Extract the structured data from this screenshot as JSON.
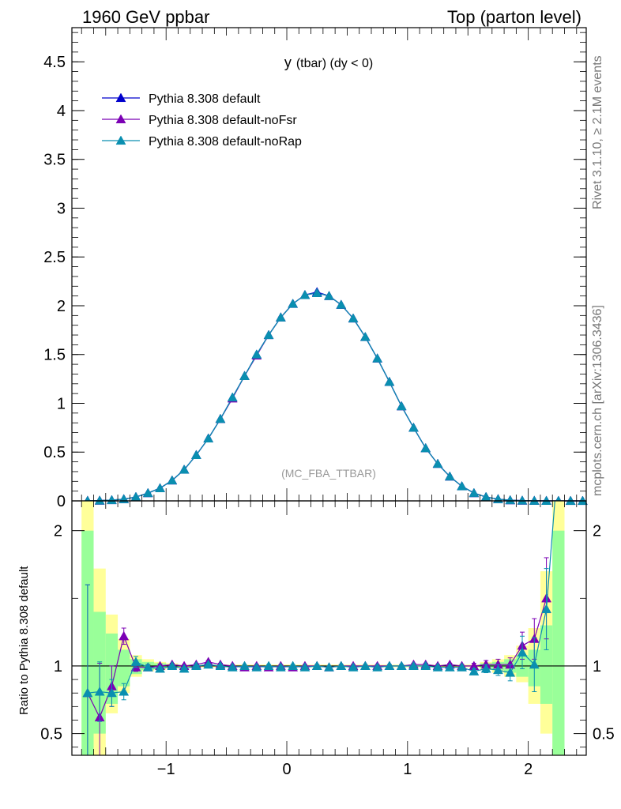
{
  "header": {
    "left": "1960 GeV ppbar",
    "right": "Top (parton level)"
  },
  "side_labels": {
    "rivet": "Rivet 3.1.10, ≥ 2.1M events",
    "mcplots": "mcplots.cern.ch [arXiv:1306.3436]"
  },
  "watermark": "(MC_FBA_TTBAR)",
  "colors": {
    "default": "#0000cc",
    "noFsr": "#7b00b4",
    "noRap": "#0a8fb0",
    "band_inner": "#99ff99",
    "band_outer": "#ffff99"
  },
  "chart_data": [
    {
      "type": "line",
      "title_main": "y",
      "title_sub": "(tbar) (dy < 0)",
      "xlim": [
        -1.78,
        2.48
      ],
      "ylim": [
        0,
        4.85
      ],
      "yticks": [
        {
          "v": 0,
          "label": "0"
        },
        {
          "v": 0.5,
          "label": "0.5"
        },
        {
          "v": 1,
          "label": "1"
        },
        {
          "v": 1.5,
          "label": "1.5"
        },
        {
          "v": 2,
          "label": "2"
        },
        {
          "v": 2.5,
          "label": "2.5"
        },
        {
          "v": 3,
          "label": "3"
        },
        {
          "v": 3.5,
          "label": "3.5"
        },
        {
          "v": 4,
          "label": "4"
        },
        {
          "v": 4.5,
          "label": "4.5"
        }
      ],
      "legend_position": "top-left",
      "x": [
        -1.65,
        -1.55,
        -1.45,
        -1.35,
        -1.25,
        -1.15,
        -1.05,
        -0.95,
        -0.85,
        -0.75,
        -0.65,
        -0.55,
        -0.45,
        -0.35,
        -0.25,
        -0.15,
        -0.05,
        0.05,
        0.15,
        0.25,
        0.35,
        0.45,
        0.55,
        0.65,
        0.75,
        0.85,
        0.95,
        1.05,
        1.15,
        1.25,
        1.35,
        1.45,
        1.55,
        1.65,
        1.75,
        1.85,
        1.95,
        2.05,
        2.15,
        2.25,
        2.35,
        2.45
      ],
      "series": [
        {
          "name": "Pythia 8.308 default",
          "color_key": "default",
          "values": [
            0.001,
            0.003,
            0.008,
            0.018,
            0.04,
            0.08,
            0.13,
            0.21,
            0.32,
            0.47,
            0.64,
            0.84,
            1.06,
            1.28,
            1.5,
            1.7,
            1.88,
            2.02,
            2.11,
            2.14,
            2.1,
            2.01,
            1.87,
            1.68,
            1.46,
            1.22,
            0.97,
            0.75,
            0.54,
            0.38,
            0.25,
            0.15,
            0.08,
            0.04,
            0.018,
            0.007,
            0.003,
            0.001,
            0.0004,
            0.0002,
            0.0001,
            5e-05
          ]
        },
        {
          "name": "Pythia 8.308 default-noFsr",
          "color_key": "noFsr",
          "values": [
            0.001,
            0.003,
            0.008,
            0.018,
            0.04,
            0.08,
            0.13,
            0.21,
            0.32,
            0.47,
            0.64,
            0.84,
            1.05,
            1.28,
            1.49,
            1.7,
            1.88,
            2.02,
            2.11,
            2.13,
            2.1,
            2.01,
            1.87,
            1.68,
            1.46,
            1.22,
            0.97,
            0.75,
            0.54,
            0.38,
            0.25,
            0.15,
            0.08,
            0.04,
            0.018,
            0.007,
            0.003,
            0.001,
            0.0004,
            0.0002,
            0.0001,
            5e-05
          ]
        },
        {
          "name": "Pythia 8.308 default-noRap",
          "color_key": "noRap",
          "values": [
            0.001,
            0.003,
            0.008,
            0.018,
            0.04,
            0.08,
            0.13,
            0.21,
            0.32,
            0.47,
            0.64,
            0.84,
            1.06,
            1.28,
            1.5,
            1.7,
            1.88,
            2.02,
            2.11,
            2.13,
            2.1,
            2.01,
            1.87,
            1.68,
            1.46,
            1.22,
            0.97,
            0.75,
            0.54,
            0.38,
            0.25,
            0.15,
            0.08,
            0.04,
            0.018,
            0.007,
            0.003,
            0.001,
            0.0004,
            0.0002,
            0.0001,
            5e-05
          ]
        }
      ]
    },
    {
      "type": "line",
      "ylabel": "Ratio to Pythia 8.308 default",
      "xlim": [
        -1.78,
        2.48
      ],
      "ylim": [
        0.34,
        2.22
      ],
      "reference": 1,
      "xticks": [
        {
          "v": -1,
          "label": "−1"
        },
        {
          "v": 0,
          "label": "0"
        },
        {
          "v": 1,
          "label": "1"
        },
        {
          "v": 2,
          "label": "2"
        }
      ],
      "yticks": [
        {
          "v": 0.5,
          "label": "0.5"
        },
        {
          "v": 1,
          "label": "1"
        },
        {
          "v": 2,
          "label": "2"
        }
      ],
      "x": [
        -1.65,
        -1.55,
        -1.45,
        -1.35,
        -1.25,
        -1.15,
        -1.05,
        -0.95,
        -0.85,
        -0.75,
        -0.65,
        -0.55,
        -0.45,
        -0.35,
        -0.25,
        -0.15,
        -0.05,
        0.05,
        0.15,
        0.25,
        0.35,
        0.45,
        0.55,
        0.65,
        0.75,
        0.85,
        0.95,
        1.05,
        1.15,
        1.25,
        1.35,
        1.45,
        1.55,
        1.65,
        1.75,
        1.85,
        1.95,
        2.05,
        2.15
      ],
      "bands": {
        "edges": [
          -1.7,
          -1.6,
          -1.5,
          -1.4,
          -1.3,
          -1.2,
          -1.1,
          -1.0,
          -0.9,
          1.6,
          1.7,
          1.8,
          1.9,
          2.0,
          2.1,
          2.2,
          2.3
        ],
        "inner": [
          [
            0.2,
            2.0
          ],
          [
            0.5,
            1.4
          ],
          [
            0.72,
            1.24
          ],
          [
            0.85,
            1.12
          ],
          [
            0.94,
            1.05
          ],
          [
            0.97,
            1.03
          ],
          [
            0.98,
            1.02
          ],
          [
            0.99,
            1.01
          ],
          [
            0.99,
            1.01
          ],
          [
            0.98,
            1.02
          ],
          [
            0.97,
            1.03
          ],
          [
            0.95,
            1.05
          ],
          [
            0.92,
            1.08
          ],
          [
            0.85,
            1.12
          ],
          [
            0.72,
            1.3
          ],
          [
            0.2,
            2.0
          ]
        ],
        "outer": [
          [
            0.1,
            2.3
          ],
          [
            0.3,
            1.72
          ],
          [
            0.65,
            1.38
          ],
          [
            0.8,
            1.2
          ],
          [
            0.92,
            1.08
          ],
          [
            0.96,
            1.05
          ],
          [
            0.97,
            1.03
          ],
          [
            0.98,
            1.02
          ],
          [
            0.98,
            1.02
          ],
          [
            0.97,
            1.03
          ],
          [
            0.95,
            1.05
          ],
          [
            0.92,
            1.08
          ],
          [
            0.88,
            1.15
          ],
          [
            0.72,
            1.28
          ],
          [
            0.5,
            1.7
          ],
          [
            0.1,
            2.3
          ]
        ]
      },
      "series": [
        {
          "name": "Pythia 8.308 default-noFsr",
          "color_key": "noFsr",
          "values": [
            0.8,
            0.62,
            0.85,
            1.22,
            0.99,
            0.99,
            1.0,
            1.01,
            1.0,
            1.01,
            1.03,
            1.01,
            1.0,
            0.99,
            1.0,
            0.99,
            1.0,
            0.99,
            1.0,
            1.0,
            0.99,
            1.0,
            1.0,
            1.0,
            1.0,
            1.0,
            1.0,
            1.01,
            1.01,
            1.0,
            1.01,
            1.0,
            1.0,
            1.01,
            1.01,
            1.01,
            1.15,
            1.2,
            1.5
          ],
          "errors": [
            0.8,
            0.4,
            0.15,
            0.06,
            0.03,
            0.02,
            0.015,
            0.01,
            0.01,
            0.01,
            0.01,
            0.01,
            0.01,
            0.01,
            0.01,
            0.01,
            0.01,
            0.01,
            0.01,
            0.01,
            0.01,
            0.01,
            0.01,
            0.01,
            0.01,
            0.01,
            0.01,
            0.01,
            0.01,
            0.01,
            0.01,
            0.01,
            0.02,
            0.03,
            0.04,
            0.05,
            0.1,
            0.15,
            0.3
          ]
        },
        {
          "name": "Pythia 8.308 default-noRap",
          "color_key": "noRap",
          "values": [
            0.8,
            0.81,
            0.8,
            0.81,
            1.03,
            0.99,
            0.98,
            1.0,
            0.98,
            1.0,
            1.01,
            1.0,
            0.99,
            1.0,
            0.99,
            1.0,
            0.99,
            1.0,
            0.99,
            1.0,
            0.99,
            1.0,
            0.99,
            1.0,
            0.99,
            1.0,
            1.0,
            1.0,
            1.0,
            0.99,
            0.99,
            0.99,
            0.96,
            0.98,
            0.97,
            0.95,
            1.1,
            1.01,
            1.42
          ],
          "errors": [
            0.8,
            0.22,
            0.1,
            0.06,
            0.04,
            0.02,
            0.015,
            0.01,
            0.01,
            0.01,
            0.01,
            0.01,
            0.01,
            0.01,
            0.01,
            0.01,
            0.01,
            0.01,
            0.01,
            0.01,
            0.01,
            0.01,
            0.01,
            0.01,
            0.01,
            0.01,
            0.01,
            0.01,
            0.01,
            0.01,
            0.01,
            0.01,
            0.02,
            0.03,
            0.04,
            0.06,
            0.12,
            0.2,
            0.3
          ]
        }
      ]
    }
  ]
}
